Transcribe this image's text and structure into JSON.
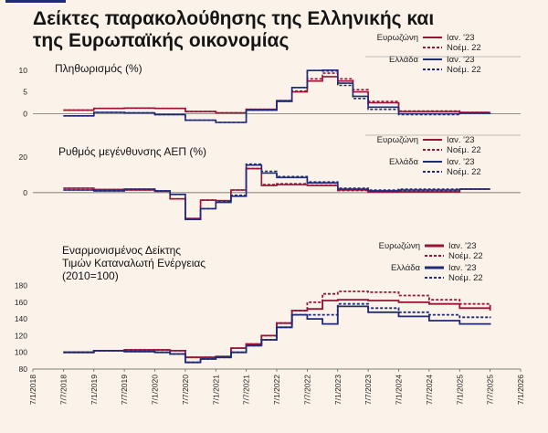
{
  "title": "Δείκτες παρακολούθησης της  Ελληνικής και της Ευρωπαϊκής οικονομίας",
  "colors": {
    "eurozone": "#9b1237",
    "greece": "#1f2a78",
    "background": "#fbf3ea",
    "grid": "#444444"
  },
  "legend": {
    "eurozone": "Ευρωζώνη",
    "greece": "Ελλάδα",
    "solid_label": "Ιαν. '23",
    "dashed_label": "Νοέμ. 22"
  },
  "x_ticks": [
    "7/1/2018",
    "7/7/2018",
    "7/1/2019",
    "7/7/2019",
    "7/1/2020",
    "7/7/2020",
    "7/1/2021",
    "7/7/2021",
    "7/1/2022",
    "7/7/2022",
    "7/1/2023",
    "7/7/2023",
    "7/1/2024",
    "7/7/2024",
    "7/1/2025",
    "7/7/2025",
    "7/1/2026"
  ],
  "chart_data": [
    {
      "type": "line",
      "title": "Πληθωρισμός (%)",
      "ylim": [
        -2,
        11
      ],
      "yticks": [
        "10",
        "5",
        "0"
      ],
      "ytick_values": [
        10,
        5,
        0
      ],
      "series": [
        {
          "name": "Ευρωζώνη Ιαν. '23",
          "style": "solid",
          "color": "#9b1237",
          "x": [
            2018.5,
            2019.0,
            2019.5,
            2020.0,
            2020.5,
            2021.0,
            2021.5,
            2022.0,
            2022.25,
            2022.5,
            2022.75,
            2023.0,
            2023.25,
            2023.5,
            2024.0,
            2025.0,
            2025.5
          ],
          "y": [
            0.8,
            1.2,
            1.3,
            1.2,
            0.5,
            0.2,
            1.0,
            2.8,
            5.0,
            7.5,
            8.5,
            7.5,
            5.0,
            2.5,
            0.5,
            0.3,
            0.3
          ]
        },
        {
          "name": "Ευρωζώνη Νοέμ. 22",
          "style": "dashed",
          "color": "#9b1237",
          "x": [
            2018.5,
            2019.0,
            2019.5,
            2020.0,
            2020.5,
            2021.0,
            2021.5,
            2022.0,
            2022.25,
            2022.5,
            2022.75,
            2023.0,
            2023.25,
            2023.5,
            2024.0,
            2025.0,
            2025.5
          ],
          "y": [
            0.8,
            1.2,
            1.3,
            1.2,
            0.5,
            0.2,
            1.0,
            2.8,
            5.2,
            8.0,
            9.3,
            8.0,
            5.5,
            2.8,
            0.6,
            0.3,
            0.3
          ]
        },
        {
          "name": "Ελλάδα Ιαν. '23",
          "style": "solid",
          "color": "#1f2a78",
          "x": [
            2018.5,
            2019.0,
            2019.5,
            2020.0,
            2020.5,
            2021.0,
            2021.5,
            2022.0,
            2022.25,
            2022.5,
            2022.75,
            2023.0,
            2023.25,
            2023.5,
            2024.0,
            2025.0,
            2025.5
          ],
          "y": [
            -0.5,
            0.3,
            0.2,
            -0.2,
            -1.5,
            -2.0,
            0.8,
            3.0,
            6.0,
            9.9,
            10.0,
            7.0,
            4.0,
            1.5,
            0.0,
            0.1,
            0.2
          ]
        },
        {
          "name": "Ελλάδα Νοέμ. 22",
          "style": "dashed",
          "color": "#1f2a78",
          "x": [
            2018.5,
            2019.0,
            2019.5,
            2020.0,
            2020.5,
            2021.0,
            2021.5,
            2022.0,
            2022.25,
            2022.5,
            2022.75,
            2023.0,
            2023.25,
            2023.5,
            2024.0,
            2025.0,
            2025.5
          ],
          "y": [
            -0.5,
            0.3,
            0.2,
            -0.2,
            -1.5,
            -2.0,
            0.8,
            3.0,
            6.0,
            9.9,
            9.8,
            6.5,
            3.5,
            1.0,
            -0.2,
            0.1,
            0.2
          ]
        }
      ]
    },
    {
      "type": "line",
      "title": "Ρυθμός μεγένθυνσης ΑΕΠ (%)",
      "ylim": [
        -18,
        22
      ],
      "yticks": [
        "20",
        "0"
      ],
      "ytick_values": [
        20,
        0
      ],
      "series": [
        {
          "name": "Ευρωζώνη Ιαν. '23",
          "style": "solid",
          "color": "#9b1237",
          "x": [
            2018.5,
            2019.0,
            2019.5,
            2020.0,
            2020.25,
            2020.5,
            2020.75,
            2021.0,
            2021.25,
            2021.5,
            2021.75,
            2022.0,
            2022.5,
            2023.0,
            2023.5,
            2024.0,
            2025.0,
            2025.5
          ],
          "y": [
            2.5,
            1.8,
            1.5,
            0.8,
            -3.5,
            -14.5,
            -4.2,
            -4.5,
            1.5,
            13.5,
            4.0,
            4.5,
            4.0,
            1.5,
            0.5,
            0.5,
            2.0,
            2.0
          ]
        },
        {
          "name": "Ευρωζώνη Νοέμ. 22",
          "style": "dashed",
          "color": "#9b1237",
          "x": [
            2018.5,
            2019.0,
            2019.5,
            2020.0,
            2020.25,
            2020.5,
            2020.75,
            2021.0,
            2021.25,
            2021.5,
            2021.75,
            2022.0,
            2022.5,
            2023.0,
            2023.5,
            2024.0,
            2025.0,
            2025.5
          ],
          "y": [
            2.5,
            1.8,
            1.5,
            0.8,
            -3.5,
            -14.5,
            -4.2,
            -4.5,
            1.5,
            13.5,
            4.5,
            5.0,
            4.2,
            1.2,
            0.3,
            0.8,
            2.0,
            2.0
          ]
        },
        {
          "name": "Ελλάδα Ιαν. '23",
          "style": "solid",
          "color": "#1f2a78",
          "x": [
            2018.5,
            2019.0,
            2019.5,
            2020.0,
            2020.25,
            2020.5,
            2020.75,
            2021.0,
            2021.25,
            2021.5,
            2021.75,
            2022.0,
            2022.5,
            2023.0,
            2023.5,
            2024.0,
            2025.0,
            2025.5
          ],
          "y": [
            1.5,
            1.0,
            2.0,
            1.0,
            -1.0,
            -15.0,
            -9.0,
            -5.5,
            -2.0,
            15.5,
            11.0,
            8.5,
            5.5,
            2.0,
            1.0,
            1.5,
            2.0,
            2.0
          ]
        },
        {
          "name": "Ελλάδα Νοέμ. 22",
          "style": "dashed",
          "color": "#1f2a78",
          "x": [
            2018.5,
            2019.0,
            2019.5,
            2020.0,
            2020.25,
            2020.5,
            2020.75,
            2021.0,
            2021.25,
            2021.5,
            2021.75,
            2022.0,
            2022.5,
            2023.0,
            2023.5,
            2024.0,
            2025.0,
            2025.5
          ],
          "y": [
            1.5,
            1.0,
            2.0,
            1.0,
            -1.0,
            -15.0,
            -9.0,
            -5.0,
            -1.5,
            16.0,
            12.0,
            9.0,
            6.0,
            2.5,
            1.5,
            2.0,
            2.0,
            2.0
          ]
        }
      ]
    },
    {
      "type": "line",
      "title": "Εναρμονισμένος Δείκτης Τιμών Καταναλωτή Ενέργειας (2010=100)",
      "ylim": [
        80,
        185
      ],
      "yticks": [
        "180",
        "160",
        "140",
        "120",
        "100",
        "80"
      ],
      "ytick_values": [
        180,
        160,
        140,
        120,
        100,
        80
      ],
      "series": [
        {
          "name": "Ευρωζώνη Ιαν. '23",
          "style": "solid",
          "color": "#9b1237",
          "x": [
            2018.5,
            2019.0,
            2019.5,
            2020.0,
            2020.25,
            2020.5,
            2020.75,
            2021.0,
            2021.25,
            2021.5,
            2021.75,
            2022.0,
            2022.25,
            2022.5,
            2022.75,
            2023.0,
            2023.5,
            2024.0,
            2024.5,
            2025.0,
            2025.5
          ],
          "y": [
            100,
            102,
            103,
            103,
            102,
            94,
            94,
            95,
            105,
            110,
            120,
            135,
            150,
            152,
            162,
            163,
            162,
            160,
            158,
            153,
            150
          ]
        },
        {
          "name": "Ευρωζώνη Νοέμ. 22",
          "style": "dashed",
          "color": "#9b1237",
          "x": [
            2018.5,
            2019.0,
            2019.5,
            2020.0,
            2020.25,
            2020.5,
            2020.75,
            2021.0,
            2021.25,
            2021.5,
            2021.75,
            2022.0,
            2022.25,
            2022.5,
            2022.75,
            2023.0,
            2023.5,
            2024.0,
            2024.5,
            2025.0,
            2025.5
          ],
          "y": [
            100,
            102,
            103,
            103,
            102,
            94,
            94,
            95,
            105,
            110,
            120,
            135,
            150,
            160,
            170,
            173,
            172,
            168,
            163,
            158,
            153
          ]
        },
        {
          "name": "Ελλάδα Ιαν. '23",
          "style": "solid",
          "color": "#1f2a78",
          "x": [
            2018.5,
            2019.0,
            2019.5,
            2020.0,
            2020.25,
            2020.5,
            2020.75,
            2021.0,
            2021.25,
            2021.5,
            2021.75,
            2022.0,
            2022.25,
            2022.5,
            2022.75,
            2023.0,
            2023.5,
            2024.0,
            2024.5,
            2025.0,
            2025.5
          ],
          "y": [
            100,
            102,
            101,
            100,
            98,
            88,
            92,
            94,
            100,
            108,
            115,
            130,
            145,
            140,
            134,
            155,
            148,
            143,
            138,
            134,
            133
          ]
        },
        {
          "name": "Ελλάδα Νοέμ. 22",
          "style": "dashed",
          "color": "#1f2a78",
          "x": [
            2018.5,
            2019.0,
            2019.5,
            2020.0,
            2020.25,
            2020.5,
            2020.75,
            2021.0,
            2021.25,
            2021.5,
            2021.75,
            2022.0,
            2022.25,
            2022.5,
            2022.75,
            2023.0,
            2023.5,
            2024.0,
            2024.5,
            2025.0,
            2025.5
          ],
          "y": [
            100,
            102,
            101,
            100,
            98,
            88,
            92,
            94,
            100,
            108,
            115,
            130,
            145,
            145,
            145,
            158,
            153,
            148,
            145,
            142,
            141
          ]
        }
      ]
    }
  ]
}
